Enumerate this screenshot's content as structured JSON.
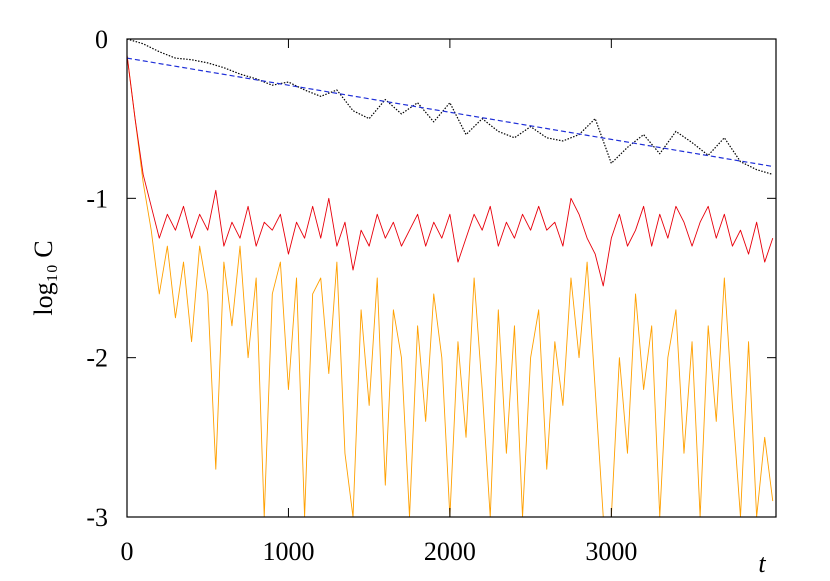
{
  "chart_data": {
    "type": "line",
    "xlabel": "t",
    "ylabel": "log₁₀ C",
    "xlim": [
      0,
      4020
    ],
    "ylim": [
      -3,
      0
    ],
    "xticks": [
      0,
      1000,
      2000,
      3000
    ],
    "yticks": [
      -3,
      -2,
      -1,
      0
    ],
    "grid": false,
    "series": [
      {
        "color": "#ffa000",
        "style": "solid",
        "x": [
          0,
          50,
          100,
          150,
          200,
          250,
          300,
          350,
          400,
          450,
          500,
          550,
          600,
          650,
          700,
          750,
          800,
          850,
          900,
          950,
          1000,
          1050,
          1100,
          1150,
          1200,
          1250,
          1300,
          1350,
          1400,
          1450,
          1500,
          1550,
          1600,
          1650,
          1700,
          1750,
          1800,
          1850,
          1900,
          1950,
          2000,
          2050,
          2100,
          2150,
          2200,
          2250,
          2300,
          2350,
          2400,
          2450,
          2500,
          2550,
          2600,
          2650,
          2700,
          2750,
          2800,
          2850,
          2900,
          2950,
          3000,
          3050,
          3100,
          3150,
          3200,
          3250,
          3300,
          3350,
          3400,
          3450,
          3500,
          3550,
          3600,
          3650,
          3700,
          3750,
          3800,
          3850,
          3900,
          3950,
          4000
        ],
        "values": [
          -0.1,
          -0.5,
          -0.9,
          -1.2,
          -1.6,
          -1.3,
          -1.75,
          -1.4,
          -1.9,
          -1.3,
          -1.6,
          -2.7,
          -1.4,
          -1.8,
          -1.3,
          -2.0,
          -1.5,
          -3.0,
          -1.6,
          -1.4,
          -2.2,
          -1.5,
          -3.0,
          -1.6,
          -1.5,
          -2.1,
          -1.4,
          -2.6,
          -3.0,
          -1.7,
          -2.3,
          -1.5,
          -2.8,
          -1.7,
          -2.0,
          -3.0,
          -1.8,
          -2.4,
          -1.6,
          -2.0,
          -3.0,
          -1.9,
          -2.5,
          -1.5,
          -2.2,
          -3.0,
          -1.7,
          -2.6,
          -1.8,
          -3.0,
          -2.0,
          -1.7,
          -2.7,
          -1.9,
          -2.3,
          -1.5,
          -2.0,
          -1.4,
          -2.2,
          -3.0,
          -3.0,
          -2.0,
          -2.6,
          -1.6,
          -2.2,
          -1.8,
          -3.0,
          -2.0,
          -1.7,
          -2.6,
          -1.9,
          -3.0,
          -1.8,
          -2.4,
          -1.5,
          -2.3,
          -3.0,
          -1.9,
          -3.0,
          -2.5,
          -2.9
        ]
      },
      {
        "color": "#e8000b",
        "style": "solid",
        "x": [
          0,
          50,
          100,
          150,
          200,
          250,
          300,
          350,
          400,
          450,
          500,
          550,
          600,
          650,
          700,
          750,
          800,
          850,
          900,
          950,
          1000,
          1050,
          1100,
          1150,
          1200,
          1250,
          1300,
          1350,
          1400,
          1450,
          1500,
          1550,
          1600,
          1650,
          1700,
          1750,
          1800,
          1850,
          1900,
          1950,
          2000,
          2050,
          2100,
          2150,
          2200,
          2250,
          2300,
          2350,
          2400,
          2450,
          2500,
          2550,
          2600,
          2650,
          2700,
          2750,
          2800,
          2850,
          2900,
          2950,
          3000,
          3050,
          3100,
          3150,
          3200,
          3250,
          3300,
          3350,
          3400,
          3450,
          3500,
          3550,
          3600,
          3650,
          3700,
          3750,
          3800,
          3850,
          3900,
          3950,
          4000
        ],
        "values": [
          -0.1,
          -0.5,
          -0.85,
          -1.05,
          -1.25,
          -1.1,
          -1.2,
          -1.05,
          -1.25,
          -1.1,
          -1.2,
          -0.95,
          -1.3,
          -1.15,
          -1.25,
          -1.05,
          -1.3,
          -1.15,
          -1.2,
          -1.1,
          -1.35,
          -1.15,
          -1.25,
          -1.05,
          -1.25,
          -1.0,
          -1.3,
          -1.15,
          -1.45,
          -1.2,
          -1.3,
          -1.1,
          -1.25,
          -1.15,
          -1.3,
          -1.2,
          -1.1,
          -1.3,
          -1.15,
          -1.25,
          -1.1,
          -1.4,
          -1.25,
          -1.1,
          -1.2,
          -1.05,
          -1.3,
          -1.15,
          -1.25,
          -1.1,
          -1.2,
          -1.05,
          -1.2,
          -1.15,
          -1.3,
          -1.0,
          -1.1,
          -1.25,
          -1.35,
          -1.55,
          -1.25,
          -1.1,
          -1.3,
          -1.2,
          -1.05,
          -1.3,
          -1.1,
          -1.25,
          -1.05,
          -1.15,
          -1.3,
          -1.15,
          -1.05,
          -1.25,
          -1.1,
          -1.3,
          -1.2,
          -1.35,
          -1.15,
          -1.4,
          -1.25
        ]
      },
      {
        "color": "#000000",
        "style": "dotted",
        "x": [
          0,
          100,
          200,
          300,
          400,
          500,
          600,
          700,
          800,
          900,
          1000,
          1100,
          1200,
          1300,
          1400,
          1500,
          1600,
          1700,
          1800,
          1900,
          2000,
          2100,
          2200,
          2300,
          2400,
          2500,
          2600,
          2700,
          2800,
          2900,
          3000,
          3100,
          3200,
          3300,
          3400,
          3500,
          3600,
          3700,
          3800,
          3900,
          4000
        ],
        "values": [
          0,
          -0.03,
          -0.08,
          -0.12,
          -0.13,
          -0.15,
          -0.18,
          -0.22,
          -0.25,
          -0.29,
          -0.27,
          -0.32,
          -0.36,
          -0.32,
          -0.45,
          -0.5,
          -0.38,
          -0.47,
          -0.4,
          -0.52,
          -0.4,
          -0.6,
          -0.5,
          -0.58,
          -0.62,
          -0.55,
          -0.62,
          -0.64,
          -0.6,
          -0.5,
          -0.78,
          -0.68,
          -0.6,
          -0.72,
          -0.58,
          -0.65,
          -0.73,
          -0.62,
          -0.77,
          -0.82,
          -0.85
        ]
      },
      {
        "color": "#1f2fd8",
        "style": "dashed",
        "x": [
          0,
          4000
        ],
        "values": [
          -0.12,
          -0.8
        ]
      }
    ]
  }
}
